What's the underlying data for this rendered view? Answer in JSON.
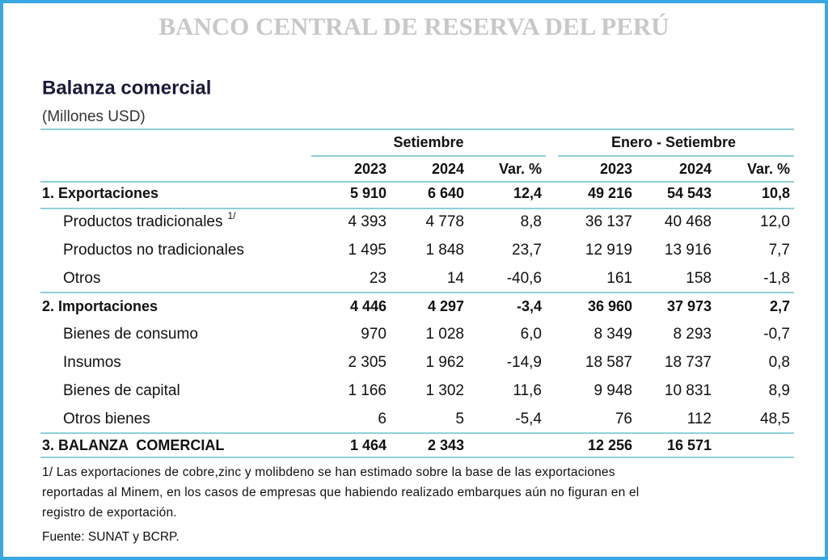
{
  "header": {
    "bank": "BANCO CENTRAL DE RESERVA DEL PERÚ",
    "title": "Balanza comercial",
    "subtitle": "(Millones USD)"
  },
  "table": {
    "groups": [
      "Setiembre",
      "Enero - Setiembre"
    ],
    "columns": [
      "2023",
      "2024",
      "Var. %",
      "2023",
      "2024",
      "Var. %"
    ],
    "rows": [
      {
        "label": "1. Exportaciones",
        "bold": true,
        "cells": [
          "5 910",
          "6 640",
          "12,4",
          "49 216",
          "54 543",
          "10,8"
        ]
      },
      {
        "label": "Productos tradicionales",
        "note": "1/",
        "cells": [
          "4 393",
          "4 778",
          "8,8",
          "36 137",
          "40 468",
          "12,0"
        ]
      },
      {
        "label": "Productos no tradicionales",
        "cells": [
          "1 495",
          "1 848",
          "23,7",
          "12 919",
          "13 916",
          "7,7"
        ]
      },
      {
        "label": "Otros",
        "cells": [
          "23",
          "14",
          "-40,6",
          "161",
          "158",
          "-1,8"
        ]
      },
      {
        "label": "2. Importaciones",
        "bold": true,
        "cells": [
          "4 446",
          "4 297",
          "-3,4",
          "36 960",
          "37 973",
          "2,7"
        ]
      },
      {
        "label": "Bienes de consumo",
        "cells": [
          "970",
          "1 028",
          "6,0",
          "8 349",
          "8 293",
          "-0,7"
        ]
      },
      {
        "label": "Insumos",
        "cells": [
          "2 305",
          "1 962",
          "-14,9",
          "18 587",
          "18 737",
          "0,8"
        ]
      },
      {
        "label": "Bienes de capital",
        "cells": [
          "1 166",
          "1 302",
          "11,6",
          "9 948",
          "10 831",
          "8,9"
        ]
      },
      {
        "label": "Otros bienes",
        "cells": [
          "6",
          "5",
          "-5,4",
          "76",
          "112",
          "48,5"
        ]
      },
      {
        "label": "3. BALANZA  COMERCIAL",
        "bold": true,
        "cells": [
          "1 464",
          "2 343",
          null,
          "12 256",
          "16 571",
          null
        ]
      }
    ]
  },
  "footnotes": [
    "1/ Las exportaciones de cobre,zinc y molibdeno se han estimado sobre la base de las exportaciones",
    "reportadas al Minem, en los casos de empresas que habiendo realizado embarques aún no figuran en el",
    "registro de exportación."
  ],
  "source": "Fuente: SUNAT y BCRP."
}
